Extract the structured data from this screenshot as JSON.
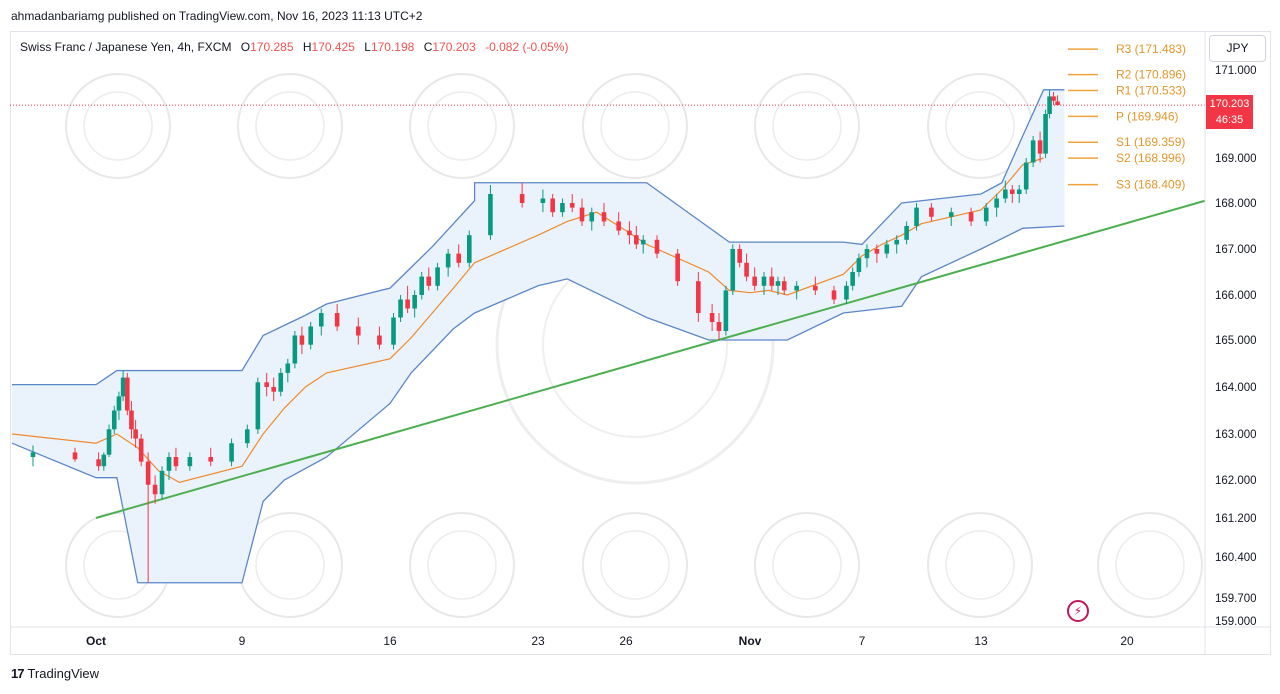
{
  "header": {
    "publish_line": "ahmadanbariamg published on TradingView.com, Nov 16, 2023 11:13 UTC+2"
  },
  "legend": {
    "symbol": "Swiss Franc / Japanese Yen, 4h, FXCM",
    "open_label": "O",
    "open": "170.285",
    "high_label": "H",
    "high": "170.425",
    "low_label": "L",
    "low": "170.198",
    "close_label": "C",
    "close": "170.203",
    "change": "-0.082 (-0.05%)"
  },
  "currency_button": "JPY",
  "price_tag": {
    "price": "170.203",
    "countdown": "46:35"
  },
  "footer": {
    "brand": "TradingView",
    "logo_glyph": "17"
  },
  "bolt_icon": "lightning-icon",
  "colors": {
    "up": "#089981",
    "down": "#f23645",
    "channel_line": "#5b86c8",
    "channel_fill": "#eaf3fb",
    "midline": "#f0892d",
    "trendline": "#4caf50",
    "pivot": "#f0a33a",
    "last_price": "#f23645"
  },
  "chart_data": {
    "type": "candlestick",
    "y_scale": "piecewise (as printed on axis)",
    "y_ticks": [
      "171.000",
      "170.203",
      "169.000",
      "168.000",
      "167.000",
      "166.000",
      "165.000",
      "164.000",
      "163.000",
      "162.000",
      "161.200",
      "160.400",
      "159.700",
      "159.000"
    ],
    "y_tick_values": [
      171.0,
      169.0,
      168.0,
      167.0,
      166.0,
      165.0,
      164.0,
      163.0,
      162.0,
      161.2,
      160.4,
      159.7,
      159.0
    ],
    "x_ticks": [
      "Oct",
      "9",
      "16",
      "23",
      "26",
      "Nov",
      "7",
      "13",
      "20"
    ],
    "x_tick_bold": [
      "Oct",
      "Nov"
    ],
    "last_price": 170.203,
    "pivot_levels": [
      {
        "label": "R3",
        "value": "171.483"
      },
      {
        "label": "R2",
        "value": "170.896"
      },
      {
        "label": "R1",
        "value": "170.533"
      },
      {
        "label": "P",
        "value": "169.946"
      },
      {
        "label": "S1",
        "value": "169.359"
      },
      {
        "label": "S2",
        "value": "168.996"
      },
      {
        "label": "S3",
        "value": "168.409"
      }
    ],
    "trendline": {
      "from": {
        "date": "Oct 2",
        "price": 161.2
      },
      "to": {
        "date": "Nov 21",
        "price": 168.05
      }
    },
    "channel_upper": [
      [
        "Sep 29",
        164.05
      ],
      [
        "Oct 2",
        164.05
      ],
      [
        "Oct 3",
        164.35
      ],
      [
        "Oct 6",
        164.35
      ],
      [
        "Oct 9",
        164.35
      ],
      [
        "Oct 10",
        165.1
      ],
      [
        "Oct 12",
        165.55
      ],
      [
        "Oct 13",
        165.8
      ],
      [
        "Oct 16",
        166.15
      ],
      [
        "Oct 17",
        166.6
      ],
      [
        "Oct 18",
        167.05
      ],
      [
        "Oct 19",
        167.55
      ],
      [
        "Oct 20",
        168.05
      ],
      [
        "Oct 20",
        168.45
      ],
      [
        "Oct 27",
        168.45
      ],
      [
        "Oct 31",
        167.15
      ],
      [
        "Nov 3",
        167.15
      ],
      [
        "Nov 6",
        167.15
      ],
      [
        "Nov 7",
        167.1
      ],
      [
        "Nov 9",
        168.0
      ],
      [
        "Nov 13",
        168.2
      ],
      [
        "Nov 14",
        168.45
      ],
      [
        "Nov 15",
        169.5
      ],
      [
        "Nov 16",
        170.55
      ],
      [
        "Nov 17",
        170.55
      ]
    ],
    "channel_lower": [
      [
        "Sep 29",
        162.8
      ],
      [
        "Oct 2",
        162.05
      ],
      [
        "Oct 3",
        162.05
      ],
      [
        "Oct 4",
        159.96
      ],
      [
        "Oct 9",
        159.96
      ],
      [
        "Oct 10",
        161.55
      ],
      [
        "Oct 11",
        162.0
      ],
      [
        "Oct 13",
        162.5
      ],
      [
        "Oct 16",
        163.65
      ],
      [
        "Oct 17",
        164.3
      ],
      [
        "Oct 19",
        165.25
      ],
      [
        "Oct 20",
        165.6
      ],
      [
        "Oct 23",
        166.2
      ],
      [
        "Oct 24",
        166.35
      ],
      [
        "Oct 27",
        165.5
      ],
      [
        "Oct 30",
        165.0
      ],
      [
        "Nov 3",
        165.0
      ],
      [
        "Nov 6",
        165.6
      ],
      [
        "Nov 9",
        165.75
      ],
      [
        "Nov 10",
        166.4
      ],
      [
        "Nov 13",
        167.0
      ],
      [
        "Nov 15",
        167.45
      ],
      [
        "Nov 17",
        167.5
      ]
    ],
    "midline": [
      [
        "Sep 29",
        163.0
      ],
      [
        "Oct 2",
        162.8
      ],
      [
        "Oct 3",
        163.0
      ],
      [
        "Oct 4",
        162.7
      ],
      [
        "Oct 5",
        162.2
      ],
      [
        "Oct 6",
        161.95
      ],
      [
        "Oct 9",
        162.3
      ],
      [
        "Oct 10",
        163.0
      ],
      [
        "Oct 11",
        163.55
      ],
      [
        "Oct 12",
        164.0
      ],
      [
        "Oct 13",
        164.3
      ],
      [
        "Oct 16",
        164.6
      ],
      [
        "Oct 17",
        165.05
      ],
      [
        "Oct 18",
        165.6
      ],
      [
        "Oct 19",
        166.15
      ],
      [
        "Oct 20",
        166.7
      ],
      [
        "Oct 23",
        167.3
      ],
      [
        "Oct 24",
        167.6
      ],
      [
        "Oct 25",
        167.8
      ],
      [
        "Oct 26",
        167.4
      ],
      [
        "Oct 27",
        167.1
      ],
      [
        "Oct 30",
        166.5
      ],
      [
        "Oct 31",
        166.1
      ],
      [
        "Nov 1",
        166.05
      ],
      [
        "Nov 2",
        166.1
      ],
      [
        "Nov 3",
        166.0
      ],
      [
        "Nov 6",
        166.45
      ],
      [
        "Nov 7",
        166.85
      ],
      [
        "Nov 8",
        167.1
      ],
      [
        "Nov 9",
        167.3
      ],
      [
        "Nov 10",
        167.55
      ],
      [
        "Nov 13",
        167.85
      ],
      [
        "Nov 14",
        168.3
      ],
      [
        "Nov 15",
        168.85
      ],
      [
        "Nov 16",
        169.0
      ]
    ],
    "candles": [
      [
        "Sep 29",
        162.5,
        162.75,
        162.3,
        162.6
      ],
      [
        "Sep 29",
        162.6,
        162.7,
        162.4,
        162.45
      ],
      [
        "Oct 2",
        162.45,
        162.6,
        162.2,
        162.3
      ],
      [
        "Oct 2",
        162.3,
        162.6,
        162.2,
        162.55
      ],
      [
        "Oct 2",
        162.55,
        163.2,
        162.5,
        163.1
      ],
      [
        "Oct 2",
        163.1,
        163.6,
        163.0,
        163.5
      ],
      [
        "Oct 3",
        163.5,
        163.9,
        163.3,
        163.8
      ],
      [
        "Oct 3",
        163.8,
        164.35,
        163.7,
        164.2
      ],
      [
        "Oct 3",
        164.2,
        164.3,
        163.4,
        163.5
      ],
      [
        "Oct 3",
        163.5,
        163.7,
        162.9,
        163.1
      ],
      [
        "Oct 3",
        163.1,
        163.3,
        162.7,
        162.9
      ],
      [
        "Oct 4",
        162.9,
        163.0,
        162.3,
        162.4
      ],
      [
        "Oct 4",
        162.4,
        162.6,
        159.96,
        161.9
      ],
      [
        "Oct 4",
        161.9,
        162.1,
        161.5,
        161.7
      ],
      [
        "Oct 5",
        161.7,
        162.3,
        161.6,
        162.2
      ],
      [
        "Oct 5",
        162.2,
        162.6,
        162.0,
        162.5
      ],
      [
        "Oct 5",
        162.5,
        162.7,
        162.2,
        162.3
      ],
      [
        "Oct 6",
        162.3,
        162.6,
        162.2,
        162.5
      ],
      [
        "Oct 6",
        162.5,
        162.7,
        162.3,
        162.4
      ],
      [
        "Oct 6",
        162.4,
        162.9,
        162.3,
        162.8
      ],
      [
        "Oct 9",
        162.8,
        163.2,
        162.7,
        163.1
      ],
      [
        "Oct 9",
        163.1,
        164.2,
        163.0,
        164.1
      ],
      [
        "Oct 10",
        164.1,
        164.3,
        163.8,
        164.0
      ],
      [
        "Oct 10",
        164.0,
        164.2,
        163.7,
        163.9
      ],
      [
        "Oct 10",
        163.9,
        164.4,
        163.8,
        164.3
      ],
      [
        "Oct 11",
        164.3,
        164.6,
        164.1,
        164.5
      ],
      [
        "Oct 11",
        164.5,
        165.2,
        164.4,
        165.1
      ],
      [
        "Oct 11",
        165.1,
        165.3,
        164.7,
        164.9
      ],
      [
        "Oct 12",
        164.9,
        165.4,
        164.8,
        165.3
      ],
      [
        "Oct 12",
        165.3,
        165.7,
        165.1,
        165.6
      ],
      [
        "Oct 13",
        165.6,
        165.8,
        165.2,
        165.3
      ],
      [
        "Oct 13",
        165.3,
        165.5,
        164.9,
        165.1
      ],
      [
        "Oct 13",
        165.1,
        165.3,
        164.8,
        164.9
      ],
      [
        "Oct 16",
        164.9,
        165.6,
        164.8,
        165.5
      ],
      [
        "Oct 16",
        165.5,
        166.0,
        165.4,
        165.9
      ],
      [
        "Oct 16",
        165.9,
        166.2,
        165.6,
        165.7
      ],
      [
        "Oct 17",
        165.7,
        166.1,
        165.5,
        166.0
      ],
      [
        "Oct 17",
        166.0,
        166.5,
        165.9,
        166.4
      ],
      [
        "Oct 17",
        166.4,
        166.6,
        166.1,
        166.2
      ],
      [
        "Oct 18",
        166.2,
        166.7,
        166.1,
        166.6
      ],
      [
        "Oct 18",
        166.6,
        167.0,
        166.4,
        166.9
      ],
      [
        "Oct 19",
        166.9,
        167.1,
        166.6,
        166.7
      ],
      [
        "Oct 19",
        166.7,
        167.4,
        166.6,
        167.3
      ],
      [
        "Oct 20",
        167.3,
        168.4,
        167.2,
        168.2
      ],
      [
        "Oct 20",
        168.2,
        168.45,
        167.9,
        168.0
      ],
      [
        "Oct 23",
        168.0,
        168.3,
        167.8,
        168.1
      ],
      [
        "Oct 23",
        168.1,
        168.2,
        167.7,
        167.8
      ],
      [
        "Oct 23",
        167.8,
        168.1,
        167.7,
        168.0
      ],
      [
        "Oct 24",
        168.0,
        168.2,
        167.8,
        167.9
      ],
      [
        "Oct 24",
        167.9,
        168.1,
        167.5,
        167.6
      ],
      [
        "Oct 24",
        167.6,
        167.9,
        167.4,
        167.8
      ],
      [
        "Oct 25",
        167.8,
        168.0,
        167.5,
        167.6
      ],
      [
        "Oct 25",
        167.6,
        167.8,
        167.3,
        167.4
      ],
      [
        "Oct 26",
        167.4,
        167.6,
        167.1,
        167.3
      ],
      [
        "Oct 26",
        167.3,
        167.5,
        167.0,
        167.1
      ],
      [
        "Oct 26",
        167.1,
        167.3,
        166.9,
        167.2
      ],
      [
        "Oct 27",
        167.2,
        167.3,
        166.8,
        166.9
      ],
      [
        "Oct 27",
        166.9,
        167.0,
        166.2,
        166.3
      ],
      [
        "Oct 27",
        166.3,
        166.5,
        165.4,
        165.6
      ],
      [
        "Oct 30",
        165.6,
        165.8,
        165.2,
        165.4
      ],
      [
        "Oct 30",
        165.4,
        165.6,
        165.0,
        165.2
      ],
      [
        "Oct 30",
        165.2,
        166.2,
        165.1,
        166.1
      ],
      [
        "Oct 31",
        166.1,
        167.1,
        166.0,
        167.0
      ],
      [
        "Oct 31",
        167.0,
        167.1,
        166.6,
        166.7
      ],
      [
        "Oct 31",
        166.7,
        166.9,
        166.3,
        166.4
      ],
      [
        "Nov 1",
        166.4,
        166.6,
        166.1,
        166.2
      ],
      [
        "Nov 1",
        166.2,
        166.5,
        166.0,
        166.4
      ],
      [
        "Nov 2",
        166.4,
        166.6,
        166.1,
        166.2
      ],
      [
        "Nov 2",
        166.2,
        166.4,
        166.0,
        166.3
      ],
      [
        "Nov 2",
        166.3,
        166.4,
        166.0,
        166.1
      ],
      [
        "Nov 3",
        166.1,
        166.3,
        165.9,
        166.2
      ],
      [
        "Nov 3",
        166.2,
        166.4,
        166.0,
        166.1
      ],
      [
        "Nov 3",
        166.1,
        166.2,
        165.8,
        165.9
      ],
      [
        "Nov 6",
        165.9,
        166.3,
        165.8,
        166.2
      ],
      [
        "Nov 6",
        166.2,
        166.6,
        166.1,
        166.5
      ],
      [
        "Nov 6",
        166.5,
        166.9,
        166.4,
        166.8
      ],
      [
        "Nov 7",
        166.8,
        167.1,
        166.6,
        167.0
      ],
      [
        "Nov 7",
        167.0,
        167.1,
        166.7,
        166.9
      ],
      [
        "Nov 8",
        166.9,
        167.2,
        166.8,
        167.1
      ],
      [
        "Nov 8",
        167.1,
        167.3,
        166.9,
        167.2
      ],
      [
        "Nov 9",
        167.2,
        167.6,
        167.1,
        167.5
      ],
      [
        "Nov 9",
        167.5,
        168.0,
        167.4,
        167.9
      ],
      [
        "Nov 10",
        167.9,
        168.0,
        167.6,
        167.7
      ],
      [
        "Nov 10",
        167.7,
        167.9,
        167.5,
        167.8
      ],
      [
        "Nov 10",
        167.8,
        167.9,
        167.5,
        167.6
      ],
      [
        "Nov 13",
        167.6,
        168.0,
        167.5,
        167.9
      ],
      [
        "Nov 13",
        167.9,
        168.2,
        167.7,
        168.1
      ],
      [
        "Nov 14",
        168.1,
        168.5,
        168.0,
        168.3
      ],
      [
        "Nov 14",
        168.3,
        168.4,
        168.0,
        168.2
      ],
      [
        "Nov 14",
        168.2,
        168.4,
        168.0,
        168.3
      ],
      [
        "Nov 15",
        168.3,
        169.0,
        168.2,
        168.9
      ],
      [
        "Nov 15",
        168.9,
        169.5,
        168.8,
        169.4
      ],
      [
        "Nov 15",
        169.4,
        169.6,
        168.9,
        169.1
      ],
      [
        "Nov 16",
        169.1,
        170.1,
        169.0,
        170.0
      ],
      [
        "Nov 16",
        170.0,
        170.55,
        169.9,
        170.4
      ],
      [
        "Nov 16",
        170.4,
        170.5,
        170.2,
        170.3
      ],
      [
        "Nov 16",
        170.285,
        170.425,
        170.198,
        170.203
      ]
    ]
  }
}
